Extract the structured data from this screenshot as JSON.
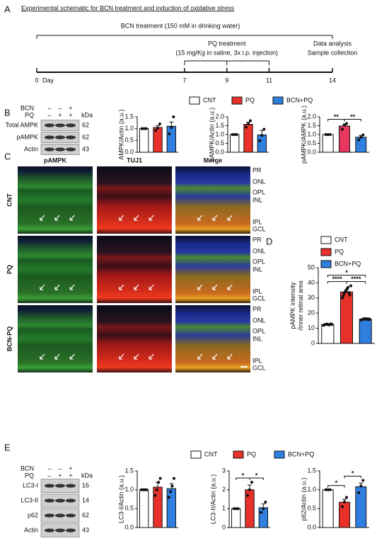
{
  "panel_a": {
    "label": "A",
    "title": "Experimental schematic for BCN treatment and induction of oxidative stress",
    "bcn": "BCN treatment (150 mM in drinking water)",
    "pq_title": "PQ treatment",
    "pq_detail": "(15 mg/Kg in saline, 3x i.p. injection)",
    "end_1": "Data analysis",
    "end_2": "Sample collection",
    "day_label": "Day",
    "days": [
      0,
      7,
      9,
      11,
      14
    ]
  },
  "panel_b": {
    "label": "B",
    "legend": [
      {
        "name": "CNT",
        "color": "#ffffff"
      },
      {
        "name": "PQ",
        "color": "#e8312a"
      },
      {
        "name": "BCN+PQ",
        "color": "#2f7fe0"
      }
    ],
    "blot": {
      "header": [
        "BCN",
        "PQ"
      ],
      "signs": [
        [
          "–",
          "–",
          "+"
        ],
        [
          "–",
          "+",
          "+"
        ]
      ],
      "unit": "kDa",
      "rows": [
        {
          "name": "Total AMPK",
          "kda": 62
        },
        {
          "name": "pAMPK",
          "kda": 62
        },
        {
          "name": "Actin",
          "kda": 43
        }
      ]
    }
  },
  "panel_c": {
    "label": "C",
    "columns": [
      "pAMPK",
      "TUJ1",
      "Merge"
    ],
    "rows": [
      "CNT",
      "PQ",
      "BCN-PQ"
    ],
    "layers": [
      "PR",
      "ONL",
      "OPL",
      "INL",
      "IPL",
      "GCL"
    ]
  },
  "panel_d": {
    "label": "D",
    "legend": [
      {
        "name": "CNT",
        "color": "#ffffff"
      },
      {
        "name": "PQ",
        "color": "#e8312a"
      },
      {
        "name": "BCN+PQ",
        "color": "#2f7fe0"
      }
    ]
  },
  "panel_e": {
    "label": "E",
    "legend": [
      {
        "name": "CNT",
        "color": "#ffffff"
      },
      {
        "name": "PQ",
        "color": "#e8312a"
      },
      {
        "name": "BCN+PQ",
        "color": "#2f7fe0"
      }
    ],
    "blot": {
      "header": [
        "BCN",
        "PQ"
      ],
      "signs": [
        [
          "–",
          "–",
          "+"
        ],
        [
          "–",
          "+",
          "+"
        ]
      ],
      "unit": "kDa",
      "rows": [
        {
          "name": "LC3-I",
          "kda": 16
        },
        {
          "name": "LC3-II",
          "kda": 14
        },
        {
          "name": "p62",
          "kda": 62
        },
        {
          "name": "Actin",
          "kda": 43
        }
      ]
    }
  },
  "chart_data": [
    {
      "type": "bar",
      "ylabel": "AMPK/Actin (a.u.)",
      "values": [
        1.0,
        1.05,
        1.1
      ],
      "errors": [
        0,
        0.08,
        0.18
      ],
      "points": [
        [
          1,
          1,
          1
        ],
        [
          0.92,
          1.02,
          1.2
        ],
        [
          0.78,
          1.05,
          1.5
        ]
      ],
      "colors": [
        "#ffffff",
        "#e8312a",
        "#2f7fe0"
      ],
      "ylim": [
        0,
        1.5
      ],
      "yticks": [
        {
          "value": 0,
          "label": "0.0"
        },
        0.5,
        {
          "value": 1,
          "label": "1.0"
        },
        1.5
      ],
      "annotations": []
    },
    {
      "type": "bar",
      "ylabel": "pAMPK/Actin (a.u.)",
      "values": [
        1.0,
        1.58,
        0.98
      ],
      "errors": [
        0,
        0.12,
        0.25
      ],
      "points": [
        [
          1,
          1,
          1
        ],
        [
          1.42,
          1.6,
          1.78
        ],
        [
          0.65,
          0.95,
          1.3
        ]
      ],
      "colors": [
        "#ffffff",
        "#e8312a",
        "#2f7fe0"
      ],
      "ylim": [
        0,
        2
      ],
      "yticks": [
        {
          "value": 0,
          "label": "0.0"
        },
        0.5,
        {
          "value": 1,
          "label": "1.0"
        },
        1.5,
        {
          "value": 2,
          "label": "2.0"
        }
      ],
      "annotations": []
    },
    {
      "type": "bar",
      "ylabel": "pAMPK/AMPK (a.u.)",
      "values": [
        1.0,
        1.48,
        0.85
      ],
      "errors": [
        0,
        0.1,
        0.1
      ],
      "points": [
        [
          1,
          1,
          1
        ],
        [
          1.3,
          1.55,
          1.62
        ],
        [
          0.7,
          0.85,
          0.98
        ]
      ],
      "colors": [
        "#ffffff",
        "#e8365f",
        "#2f7fe0"
      ],
      "ylim": [
        0,
        2
      ],
      "yticks": [
        {
          "value": 0,
          "label": "0.0"
        },
        0.5,
        {
          "value": 1,
          "label": "1.0"
        },
        1.5,
        {
          "value": 2,
          "label": "2.0"
        }
      ],
      "annotations": [
        {
          "label": "**",
          "bars": [
            0,
            1
          ]
        },
        {
          "label": "**",
          "bars": [
            1,
            2
          ]
        }
      ]
    },
    {
      "type": "bar",
      "ylabel": [
        "pAMPK intensity",
        "/Inner retinal area"
      ],
      "values": [
        12.5,
        34,
        16
      ],
      "errors": [
        0.3,
        1.5,
        0.4
      ],
      "points": [
        [
          12,
          12.3,
          12.5,
          12.6,
          12.8,
          12.4,
          12.2,
          12.7,
          12.9,
          12.5
        ],
        [
          30,
          31.5,
          33,
          34,
          35,
          36,
          37,
          33.5,
          32,
          38
        ],
        [
          15.5,
          15.8,
          16,
          16.2,
          16.4,
          15.9,
          16.1,
          16.3,
          15.7,
          16
        ]
      ],
      "colors": [
        "#ffffff",
        "#e8312a",
        "#2f7fe0"
      ],
      "ylim": [
        0,
        50
      ],
      "yticks": [
        0,
        10,
        20,
        30,
        40,
        50
      ],
      "annotations": [
        {
          "label": "****",
          "bars": [
            0,
            1
          ]
        },
        {
          "label": "****",
          "bars": [
            1,
            2
          ]
        },
        {
          "label": "*",
          "bars": [
            0,
            2
          ]
        }
      ]
    },
    {
      "type": "bar",
      "ylabel": "LC3-I/Actin (a.u.)",
      "values": [
        1.0,
        1.07,
        1.03
      ],
      "errors": [
        0,
        0.12,
        0.13
      ],
      "points": [
        [
          1,
          1,
          1,
          1
        ],
        [
          0.85,
          1.0,
          1.2,
          1.3
        ],
        [
          0.8,
          0.95,
          1.1,
          1.3
        ]
      ],
      "colors": [
        "#ffffff",
        "#e8312a",
        "#2f7fe0"
      ],
      "ylim": [
        0,
        1.5
      ],
      "yticks": [
        {
          "value": 0,
          "label": "0.0"
        },
        0.5,
        {
          "value": 1,
          "label": "1.0"
        },
        1.5
      ],
      "annotations": []
    },
    {
      "type": "bar",
      "ylabel": "LC3-II/Actin (a.u.)",
      "values": [
        1.0,
        2.0,
        1.05
      ],
      "errors": [
        0,
        0.25,
        0.2
      ],
      "points": [
        [
          1,
          1,
          1
        ],
        [
          1.7,
          2.0,
          2.4
        ],
        [
          0.8,
          1.0,
          1.35
        ]
      ],
      "colors": [
        "#ffffff",
        "#e8312a",
        "#2f7fe0"
      ],
      "ylim": [
        0,
        3
      ],
      "yticks": [
        0,
        1,
        2,
        3
      ],
      "annotations": [
        {
          "label": "*",
          "bars": [
            0,
            1
          ]
        },
        {
          "label": "*",
          "bars": [
            1,
            2
          ]
        }
      ]
    },
    {
      "type": "bar",
      "ylabel": "p62/Actin (a.u.)",
      "values": [
        1.0,
        0.67,
        1.08
      ],
      "errors": [
        0,
        0.08,
        0.1
      ],
      "points": [
        [
          1,
          1,
          1
        ],
        [
          0.55,
          0.68,
          0.8
        ],
        [
          0.92,
          1.1,
          1.25
        ]
      ],
      "colors": [
        "#ffffff",
        "#e8312a",
        "#2f7fe0"
      ],
      "ylim": [
        0,
        1.5
      ],
      "yticks": [
        {
          "value": 0,
          "label": "0.0"
        },
        0.5,
        {
          "value": 1,
          "label": "1.0"
        },
        1.5
      ],
      "annotations": [
        {
          "label": "*",
          "bars": [
            0,
            1
          ]
        },
        {
          "label": "*",
          "bars": [
            1,
            2
          ]
        }
      ]
    }
  ]
}
